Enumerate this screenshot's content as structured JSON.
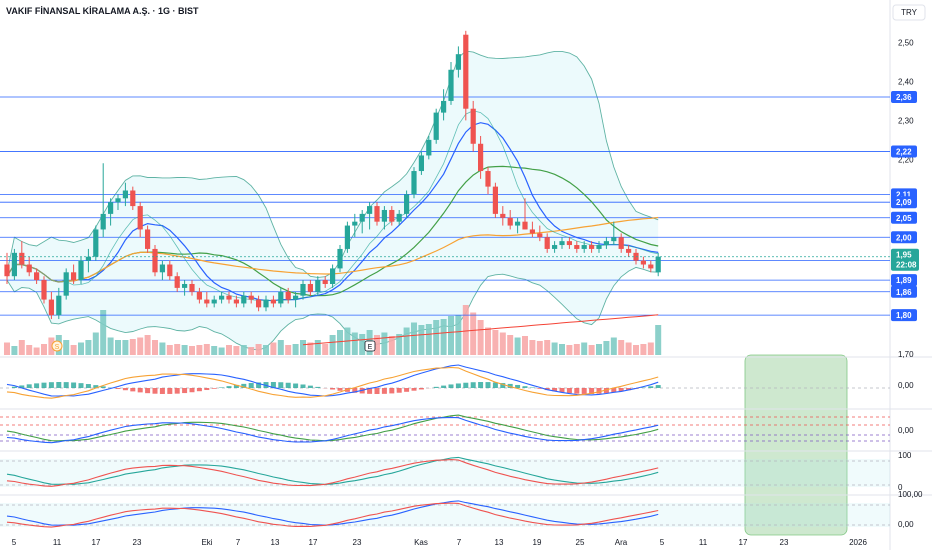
{
  "header": {
    "title": "VAKIF FİNANSAL KİRALAMA A.Ş. · 1G · BIST",
    "currency": "TRY"
  },
  "badges": {
    "s": "S",
    "e": "E"
  },
  "colors": {
    "up": "#26a69a",
    "down": "#ef5350",
    "hline": "#2962ff",
    "bb": "#5fb3a4",
    "sma_orange": "#f7a234",
    "ma_green": "#43a047",
    "ma_blue": "#2962ff",
    "ma_red": "#f44336",
    "highlight": "#a5d6a7",
    "price_tag": "#26a69a",
    "line_tag": "#2962ff"
  },
  "chart_data": {
    "type": "candlestick",
    "symbol": "VAKIF FİNANSAL KİRALAMA A.Ş.",
    "interval": "1G",
    "exchange": "BIST",
    "currency": "TRY",
    "ylim": [
      1.65,
      2.55
    ],
    "y_ticks": [
      "2,50",
      "2,40",
      "2,30",
      "2,20",
      "1,70"
    ],
    "x_ticks": [
      "5",
      "11",
      "17",
      "23",
      "Eki",
      "7",
      "13",
      "17",
      "23",
      "Kas",
      "7",
      "13",
      "19",
      "25",
      "Ara",
      "5",
      "11",
      "17",
      "23",
      "2026"
    ],
    "horizontal_levels": [
      {
        "value": 2.36,
        "label": "2,36"
      },
      {
        "value": 2.22,
        "label": "2,22"
      },
      {
        "value": 2.11,
        "label": "2,11"
      },
      {
        "value": 2.09,
        "label": "2,09"
      },
      {
        "value": 2.05,
        "label": "2,05"
      },
      {
        "value": 2.0,
        "label": "2,00"
      },
      {
        "value": 1.94,
        "label": "1,94"
      },
      {
        "value": 1.89,
        "label": "1,89"
      },
      {
        "value": 1.86,
        "label": "1,86"
      },
      {
        "value": 1.8,
        "label": "1,80"
      }
    ],
    "last_price": {
      "value": 1.95,
      "label": "1,95",
      "countdown": "22:08"
    },
    "candles": [
      [
        1.93,
        1.96,
        1.88,
        1.9
      ],
      [
        1.9,
        1.97,
        1.89,
        1.96
      ],
      [
        1.96,
        1.99,
        1.92,
        1.93
      ],
      [
        1.93,
        1.95,
        1.9,
        1.91
      ],
      [
        1.91,
        1.92,
        1.88,
        1.89
      ],
      [
        1.89,
        1.9,
        1.83,
        1.84
      ],
      [
        1.84,
        1.86,
        1.79,
        1.8
      ],
      [
        1.8,
        1.87,
        1.79,
        1.85
      ],
      [
        1.85,
        1.92,
        1.84,
        1.91
      ],
      [
        1.91,
        1.93,
        1.88,
        1.89
      ],
      [
        1.89,
        1.95,
        1.88,
        1.94
      ],
      [
        1.94,
        1.97,
        1.91,
        1.95
      ],
      [
        1.95,
        2.03,
        1.94,
        2.02
      ],
      [
        2.02,
        2.19,
        2.0,
        2.06
      ],
      [
        2.06,
        2.1,
        2.03,
        2.09
      ],
      [
        2.09,
        2.11,
        2.07,
        2.1
      ],
      [
        2.1,
        2.14,
        2.08,
        2.12
      ],
      [
        2.12,
        2.13,
        2.07,
        2.08
      ],
      [
        2.08,
        2.09,
        2.0,
        2.02
      ],
      [
        2.02,
        2.03,
        1.96,
        1.97
      ],
      [
        1.97,
        1.98,
        1.9,
        1.91
      ],
      [
        1.91,
        1.94,
        1.89,
        1.93
      ],
      [
        1.93,
        1.94,
        1.89,
        1.9
      ],
      [
        1.9,
        1.91,
        1.86,
        1.87
      ],
      [
        1.87,
        1.89,
        1.85,
        1.88
      ],
      [
        1.88,
        1.89,
        1.85,
        1.86
      ],
      [
        1.86,
        1.87,
        1.83,
        1.84
      ],
      [
        1.84,
        1.86,
        1.82,
        1.83
      ],
      [
        1.83,
        1.85,
        1.82,
        1.84
      ],
      [
        1.84,
        1.86,
        1.83,
        1.85
      ],
      [
        1.85,
        1.86,
        1.83,
        1.84
      ],
      [
        1.84,
        1.85,
        1.82,
        1.83
      ],
      [
        1.83,
        1.86,
        1.82,
        1.85
      ],
      [
        1.85,
        1.86,
        1.83,
        1.84
      ],
      [
        1.84,
        1.85,
        1.81,
        1.82
      ],
      [
        1.82,
        1.85,
        1.81,
        1.84
      ],
      [
        1.84,
        1.85,
        1.82,
        1.83
      ],
      [
        1.83,
        1.87,
        1.82,
        1.86
      ],
      [
        1.86,
        1.87,
        1.83,
        1.84
      ],
      [
        1.84,
        1.86,
        1.82,
        1.85
      ],
      [
        1.85,
        1.89,
        1.84,
        1.88
      ],
      [
        1.88,
        1.89,
        1.85,
        1.86
      ],
      [
        1.86,
        1.9,
        1.85,
        1.89
      ],
      [
        1.89,
        1.9,
        1.87,
        1.88
      ],
      [
        1.88,
        1.93,
        1.87,
        1.92
      ],
      [
        1.92,
        1.98,
        1.91,
        1.97
      ],
      [
        1.97,
        2.04,
        1.96,
        2.03
      ],
      [
        2.03,
        2.06,
        2.0,
        2.04
      ],
      [
        2.04,
        2.07,
        2.01,
        2.06
      ],
      [
        2.06,
        2.09,
        2.02,
        2.08
      ],
      [
        2.08,
        2.09,
        2.03,
        2.04
      ],
      [
        2.04,
        2.08,
        2.02,
        2.07
      ],
      [
        2.07,
        2.08,
        2.03,
        2.04
      ],
      [
        2.04,
        2.07,
        2.03,
        2.06
      ],
      [
        2.06,
        2.12,
        2.05,
        2.11
      ],
      [
        2.11,
        2.18,
        2.1,
        2.17
      ],
      [
        2.17,
        2.22,
        2.16,
        2.21
      ],
      [
        2.21,
        2.26,
        2.2,
        2.25
      ],
      [
        2.25,
        2.33,
        2.24,
        2.32
      ],
      [
        2.32,
        2.38,
        2.3,
        2.35
      ],
      [
        2.35,
        2.45,
        2.34,
        2.43
      ],
      [
        2.43,
        2.49,
        2.41,
        2.47
      ],
      [
        2.52,
        2.53,
        2.3,
        2.33
      ],
      [
        2.33,
        2.35,
        2.22,
        2.24
      ],
      [
        2.24,
        2.26,
        2.15,
        2.17
      ],
      [
        2.17,
        2.18,
        2.11,
        2.13
      ],
      [
        2.13,
        2.14,
        2.05,
        2.06
      ],
      [
        2.06,
        2.08,
        2.03,
        2.05
      ],
      [
        2.05,
        2.07,
        2.02,
        2.03
      ],
      [
        2.03,
        2.05,
        2.01,
        2.04
      ],
      [
        2.04,
        2.1,
        2.02,
        2.02
      ],
      [
        2.02,
        2.04,
        2.0,
        2.01
      ],
      [
        2.01,
        2.03,
        1.99,
        2.0
      ],
      [
        2.0,
        2.01,
        1.96,
        1.97
      ],
      [
        1.97,
        1.99,
        1.96,
        1.98
      ],
      [
        1.98,
        2.0,
        1.97,
        1.99
      ],
      [
        1.99,
        2.0,
        1.97,
        1.98
      ],
      [
        1.98,
        1.99,
        1.96,
        1.97
      ],
      [
        1.97,
        1.99,
        1.96,
        1.98
      ],
      [
        1.98,
        1.99,
        1.96,
        1.97
      ],
      [
        1.97,
        1.99,
        1.96,
        1.98
      ],
      [
        1.98,
        2.0,
        1.97,
        1.99
      ],
      [
        1.99,
        2.04,
        1.98,
        2.0
      ],
      [
        2.0,
        2.01,
        1.96,
        1.97
      ],
      [
        1.97,
        1.98,
        1.95,
        1.96
      ],
      [
        1.96,
        1.97,
        1.93,
        1.94
      ],
      [
        1.94,
        1.95,
        1.92,
        1.93
      ],
      [
        1.93,
        1.94,
        1.91,
        1.92
      ],
      [
        1.91,
        1.96,
        1.9,
        1.95
      ]
    ],
    "sub_panels": [
      {
        "name": "macd",
        "ticks": [
          "0,00"
        ]
      },
      {
        "name": "rsi",
        "ticks": [
          "0,00"
        ]
      },
      {
        "name": "stoch",
        "ticks": [
          "100",
          "0"
        ]
      },
      {
        "name": "stoch_rsi",
        "ticks": [
          "100,00",
          "0,00"
        ]
      }
    ]
  }
}
